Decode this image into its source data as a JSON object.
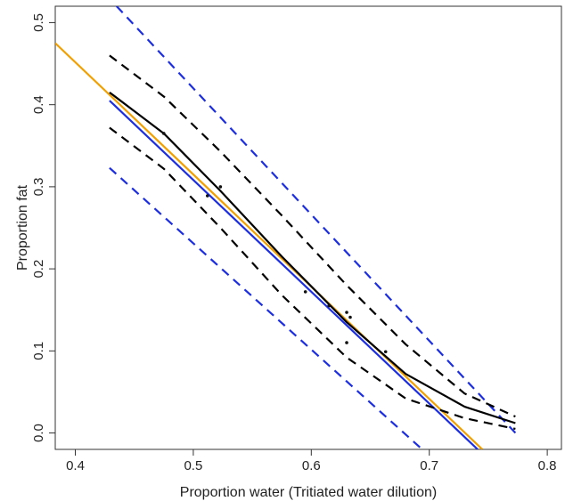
{
  "chart_data": {
    "type": "line",
    "title": "",
    "xlabel": "Proportion water (Tritiated water dilution)",
    "ylabel": "Proportion fat",
    "xlim": [
      0.383,
      0.812
    ],
    "ylim": [
      -0.02,
      0.52
    ],
    "xticks": [
      0.4,
      0.5,
      0.6,
      0.7,
      0.8
    ],
    "yticks": [
      0.0,
      0.1,
      0.2,
      0.3,
      0.4,
      0.5
    ],
    "xtick_labels": [
      "0.4",
      "0.5",
      "0.6",
      "0.7",
      "0.8"
    ],
    "ytick_labels": [
      "0.0",
      "0.1",
      "0.2",
      "0.3",
      "0.4",
      "0.5"
    ],
    "grid": false,
    "legend": "none",
    "points": [
      {
        "x": 0.475,
        "y": 0.365
      },
      {
        "x": 0.512,
        "y": 0.289
      },
      {
        "x": 0.523,
        "y": 0.3
      },
      {
        "x": 0.595,
        "y": 0.172
      },
      {
        "x": 0.615,
        "y": 0.155
      },
      {
        "x": 0.63,
        "y": 0.147
      },
      {
        "x": 0.633,
        "y": 0.141
      },
      {
        "x": 0.63,
        "y": 0.11
      },
      {
        "x": 0.663,
        "y": 0.099
      }
    ],
    "series": [
      {
        "style": "line",
        "color": "#f2a000",
        "dash": "none",
        "x": [
          0.383,
          0.745
        ],
        "y": [
          0.475,
          -0.02
        ]
      },
      {
        "style": "line",
        "color": "#1c2ee0",
        "dash": "none",
        "x": [
          0.429,
          0.741
        ],
        "y": [
          0.405,
          -0.02
        ]
      },
      {
        "style": "line",
        "color": "#1c2ee0",
        "dash": "dash",
        "x": [
          0.435,
          0.773
        ],
        "y": [
          0.52,
          0.0
        ]
      },
      {
        "style": "line",
        "color": "#1c2ee0",
        "dash": "dash",
        "x": [
          0.429,
          0.694
        ],
        "y": [
          0.323,
          -0.02
        ]
      },
      {
        "style": "line",
        "color": "#000000",
        "dash": "none",
        "x": [
          0.429,
          0.475,
          0.523,
          0.575,
          0.63,
          0.68,
          0.73,
          0.773
        ],
        "y": [
          0.415,
          0.365,
          0.295,
          0.215,
          0.135,
          0.072,
          0.032,
          0.012
        ]
      },
      {
        "style": "line",
        "color": "#000000",
        "dash": "dash",
        "x": [
          0.429,
          0.475,
          0.523,
          0.575,
          0.63,
          0.68,
          0.73,
          0.773
        ],
        "y": [
          0.46,
          0.41,
          0.343,
          0.265,
          0.18,
          0.108,
          0.048,
          0.02
        ]
      },
      {
        "style": "line",
        "color": "#000000",
        "dash": "dash",
        "x": [
          0.429,
          0.475,
          0.523,
          0.575,
          0.63,
          0.68,
          0.73,
          0.773
        ],
        "y": [
          0.372,
          0.322,
          0.25,
          0.168,
          0.092,
          0.042,
          0.018,
          0.005
        ]
      }
    ]
  }
}
